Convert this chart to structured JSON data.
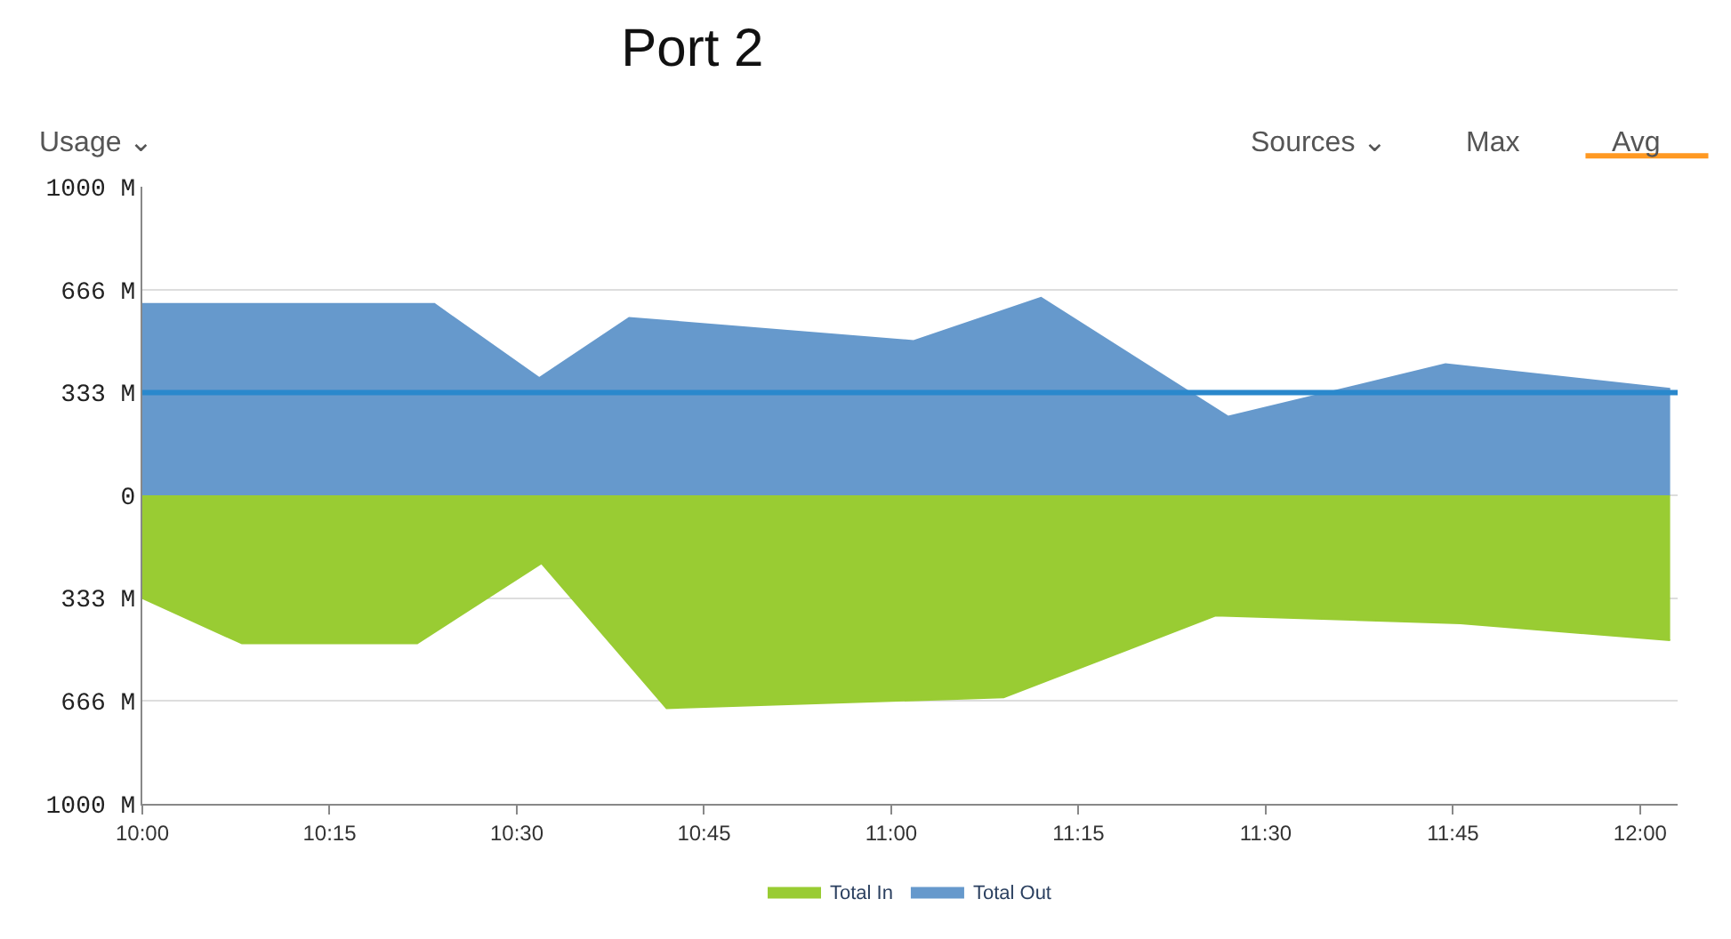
{
  "chart_data": {
    "type": "area",
    "title": "Port 2",
    "annotations": [
      "Usage ⌄",
      "Sources ⌄",
      "Max",
      "Avg"
    ],
    "xlim": [
      10,
      12.05
    ],
    "xticks": [
      {
        "value": 10,
        "label": "10:00"
      },
      {
        "value": 10.25,
        "label": "10:15"
      },
      {
        "value": 10.5,
        "label": "10:30"
      },
      {
        "value": 10.75,
        "label": "10:45"
      },
      {
        "value": 11,
        "label": "11:00"
      },
      {
        "value": 11.25,
        "label": "11:15"
      },
      {
        "value": 11.5,
        "label": "11:30"
      },
      {
        "value": 11.75,
        "label": "11:45"
      },
      {
        "value": 12,
        "label": "12:00"
      }
    ],
    "ylim": [
      -1000,
      1000
    ],
    "yticks": [
      {
        "value": 1000,
        "label": "1000 M"
      },
      {
        "value": 666,
        "label": "666 M"
      },
      {
        "value": 333,
        "label": "333 M"
      },
      0,
      {
        "value": -333,
        "label": "333 M"
      },
      {
        "value": -666,
        "label": "666 M"
      },
      {
        "value": -1000,
        "label": "1000 M"
      }
    ],
    "series": [
      {
        "name": "Total In",
        "color": "#99cc33",
        "x": [
          10,
          10.133,
          10.367,
          10.533,
          10.7,
          11.15,
          11.433,
          11.76,
          12.04
        ],
        "values": [
          -333,
          -480,
          -480,
          -220,
          -690,
          -655,
          -390,
          -415,
          -470
        ]
      },
      {
        "name": "Total Out",
        "color": "#6699cc",
        "x": [
          10,
          10.39,
          10.53,
          10.65,
          11.03,
          11.2,
          11.45,
          11.74,
          12.04
        ],
        "values": [
          620,
          620,
          380,
          575,
          500,
          640,
          255,
          425,
          345
        ]
      }
    ],
    "ref_lines": [
      {
        "axis": "y",
        "value": 333,
        "color": "#2a88cc"
      }
    ],
    "grid": "y",
    "legend": "bottom"
  }
}
